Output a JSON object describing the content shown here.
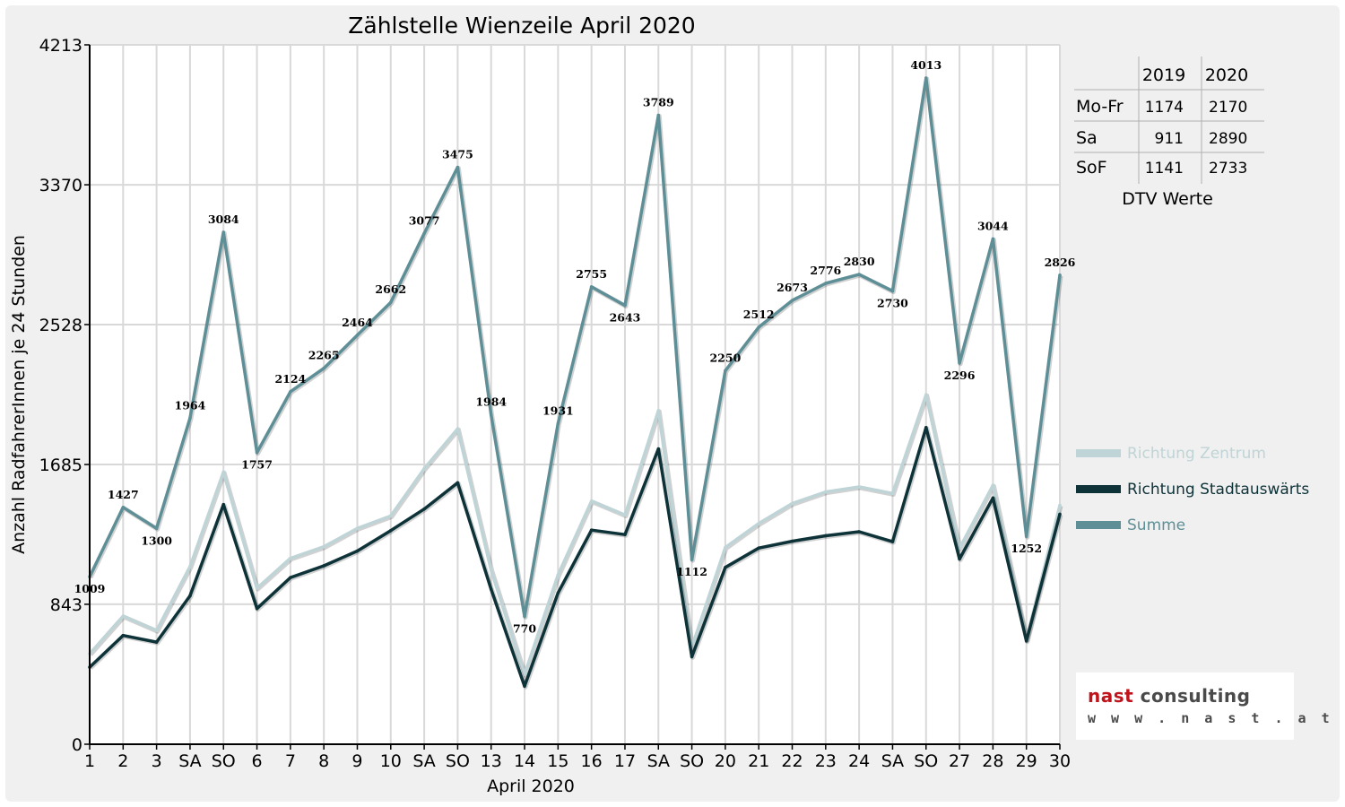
{
  "chart_data": {
    "type": "line",
    "title": "Zählstelle Wienzeile April 2020",
    "xlabel": "April 2020",
    "ylabel": "Anzahl RadfahrerInnen je 24 Stunden",
    "ylim": [
      0,
      4213
    ],
    "yticks": [
      "0",
      "843",
      "1685",
      "2528",
      "3370",
      "4213"
    ],
    "categories": [
      "1",
      "2",
      "3",
      "SA",
      "SO",
      "6",
      "7",
      "8",
      "9",
      "10",
      "SA",
      "SO",
      "13",
      "14",
      "15",
      "16",
      "17",
      "SA",
      "SO",
      "20",
      "21",
      "22",
      "23",
      "24",
      "SA",
      "SO",
      "27",
      "28",
      "29",
      "30"
    ],
    "highlight_categories": [
      4,
      11,
      12,
      18,
      25
    ],
    "highlight_color": "#e00000",
    "grid": "horizontal and vertical",
    "legend_position": "right",
    "series": [
      {
        "name": "Richtung Zentrum",
        "color": "#bfd4d6",
        "values": [
          545,
          772,
          685,
          1070,
          1640,
          940,
          1120,
          1190,
          1300,
          1375,
          1660,
          1900,
          1050,
          420,
          1020,
          1465,
          1380,
          2010,
          585,
          1185,
          1330,
          1450,
          1520,
          1550,
          1510,
          2105,
          1180,
          1560,
          630,
          1440
        ]
      },
      {
        "name": "Richtung Stadtauswärts",
        "color": "#0d3339",
        "values": [
          464,
          655,
          615,
          894,
          1444,
          817,
          1004,
          1075,
          1164,
          1287,
          1417,
          1575,
          934,
          350,
          911,
          1290,
          1263,
          1779,
          527,
          1065,
          1182,
          1223,
          1256,
          1280,
          1220,
          1908,
          1116,
          1484,
          622,
          1386
        ]
      },
      {
        "name": "Summe",
        "color": "#5e8f97",
        "values": [
          1009,
          1427,
          1300,
          1964,
          3084,
          1757,
          2124,
          2265,
          2464,
          2662,
          3077,
          3475,
          1984,
          770,
          1931,
          2755,
          2643,
          3789,
          1112,
          2250,
          2512,
          2673,
          2776,
          2830,
          2730,
          4013,
          2296,
          3044,
          1252,
          2826
        ]
      }
    ],
    "data_labels": [
      "1009",
      "1427",
      "1300",
      "1964",
      "3084",
      "1757",
      "2124",
      "2265",
      "2464",
      "2662",
      "3077",
      "3475",
      "1984",
      "770",
      "1931",
      "2755",
      "2643",
      "3789",
      "1112",
      "2250",
      "2512",
      "2673",
      "2776",
      "2830",
      "2730",
      "4013",
      "2296",
      "3044",
      "1252",
      "2826"
    ]
  },
  "dtv_table": {
    "columns": [
      "",
      "2019",
      "2020"
    ],
    "rows": [
      [
        "Mo-Fr",
        "1174",
        "2170"
      ],
      [
        "Sa",
        "911",
        "2890"
      ],
      [
        "SoF",
        "1141",
        "2733"
      ]
    ],
    "caption": "DTV Werte"
  },
  "logo": {
    "word1": "nast",
    "word2": "consulting",
    "url": "w w w . n a s t . a t",
    "color_red": "#c0141c",
    "color_gray": "#4a4a4a"
  }
}
